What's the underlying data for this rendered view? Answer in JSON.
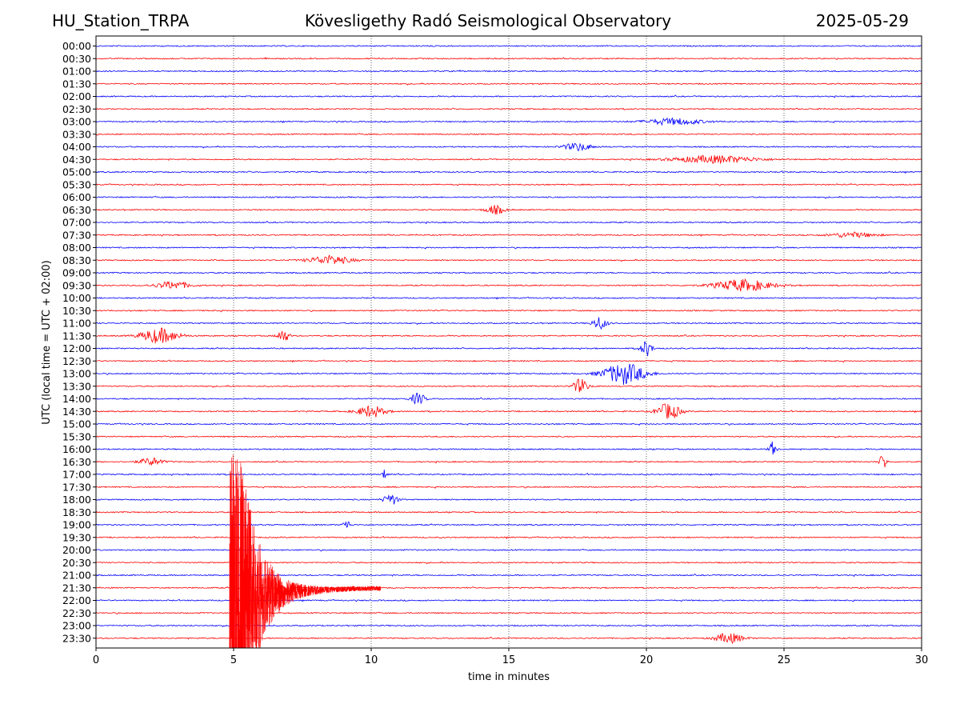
{
  "header": {
    "station": "HU_Station_TRPA",
    "observatory": "Kövesligethy Radó Seismological Observatory",
    "date": "2025-05-29"
  },
  "chart_data": {
    "type": "line",
    "title": "Kövesligethy Radó Seismological Observatory",
    "xlabel": "time in minutes",
    "ylabel": "UTC (local time = UTC + 02:00)",
    "xlim": [
      0,
      30
    ],
    "xticks": [
      0,
      5,
      10,
      15,
      20,
      25,
      30
    ],
    "grid": "vertical dotted lines at 5-minute ticks",
    "trace_colors": [
      "#0000ff",
      "#ff0000"
    ],
    "rows": [
      "00:00",
      "00:30",
      "01:00",
      "01:30",
      "02:00",
      "02:30",
      "03:00",
      "03:30",
      "04:00",
      "04:30",
      "05:00",
      "05:30",
      "06:00",
      "06:30",
      "07:00",
      "07:30",
      "08:00",
      "08:30",
      "09:00",
      "09:30",
      "10:00",
      "10:30",
      "11:00",
      "11:30",
      "12:00",
      "12:30",
      "13:00",
      "13:30",
      "14:00",
      "14:30",
      "15:00",
      "15:30",
      "16:00",
      "16:30",
      "17:00",
      "17:30",
      "18:00",
      "18:30",
      "19:00",
      "19:30",
      "20:00",
      "20:30",
      "21:00",
      "21:30",
      "22:00",
      "22:30",
      "23:00",
      "23:30"
    ],
    "events": [
      {
        "row": "03:00",
        "t": 21.0,
        "dur": 2.5,
        "amp": 0.25
      },
      {
        "row": "04:00",
        "t": 17.5,
        "dur": 1.2,
        "amp": 0.3
      },
      {
        "row": "04:30",
        "t": 22.5,
        "dur": 3.5,
        "amp": 0.3
      },
      {
        "row": "06:30",
        "t": 14.5,
        "dur": 0.8,
        "amp": 0.35
      },
      {
        "row": "07:30",
        "t": 27.5,
        "dur": 2.0,
        "amp": 0.2
      },
      {
        "row": "08:30",
        "t": 8.5,
        "dur": 1.8,
        "amp": 0.35
      },
      {
        "row": "09:30",
        "t": 2.8,
        "dur": 1.5,
        "amp": 0.3
      },
      {
        "row": "09:30",
        "t": 23.5,
        "dur": 2.5,
        "amp": 0.45
      },
      {
        "row": "11:00",
        "t": 18.3,
        "dur": 0.6,
        "amp": 0.5
      },
      {
        "row": "11:30",
        "t": 2.3,
        "dur": 1.6,
        "amp": 0.6
      },
      {
        "row": "11:30",
        "t": 6.8,
        "dur": 0.5,
        "amp": 0.5
      },
      {
        "row": "12:00",
        "t": 20.0,
        "dur": 0.5,
        "amp": 0.6
      },
      {
        "row": "13:00",
        "t": 19.2,
        "dur": 1.8,
        "amp": 0.85
      },
      {
        "row": "13:30",
        "t": 17.6,
        "dur": 0.6,
        "amp": 0.6
      },
      {
        "row": "14:00",
        "t": 11.7,
        "dur": 0.6,
        "amp": 0.45
      },
      {
        "row": "14:30",
        "t": 10.0,
        "dur": 1.2,
        "amp": 0.45
      },
      {
        "row": "14:30",
        "t": 20.8,
        "dur": 1.0,
        "amp": 0.65
      },
      {
        "row": "16:00",
        "t": 24.6,
        "dur": 0.3,
        "amp": 0.6
      },
      {
        "row": "16:30",
        "t": 2.0,
        "dur": 1.0,
        "amp": 0.3
      },
      {
        "row": "16:30",
        "t": 28.6,
        "dur": 0.3,
        "amp": 0.65
      },
      {
        "row": "17:00",
        "t": 10.5,
        "dur": 0.2,
        "amp": 0.5
      },
      {
        "row": "18:00",
        "t": 10.7,
        "dur": 0.6,
        "amp": 0.45
      },
      {
        "row": "19:00",
        "t": 9.1,
        "dur": 0.3,
        "amp": 0.4
      },
      {
        "row": "23:30",
        "t": 23.0,
        "dur": 1.2,
        "amp": 0.4
      }
    ],
    "earthquake": {
      "row": "21:30",
      "t": 4.85,
      "dur": 5.5
    }
  }
}
